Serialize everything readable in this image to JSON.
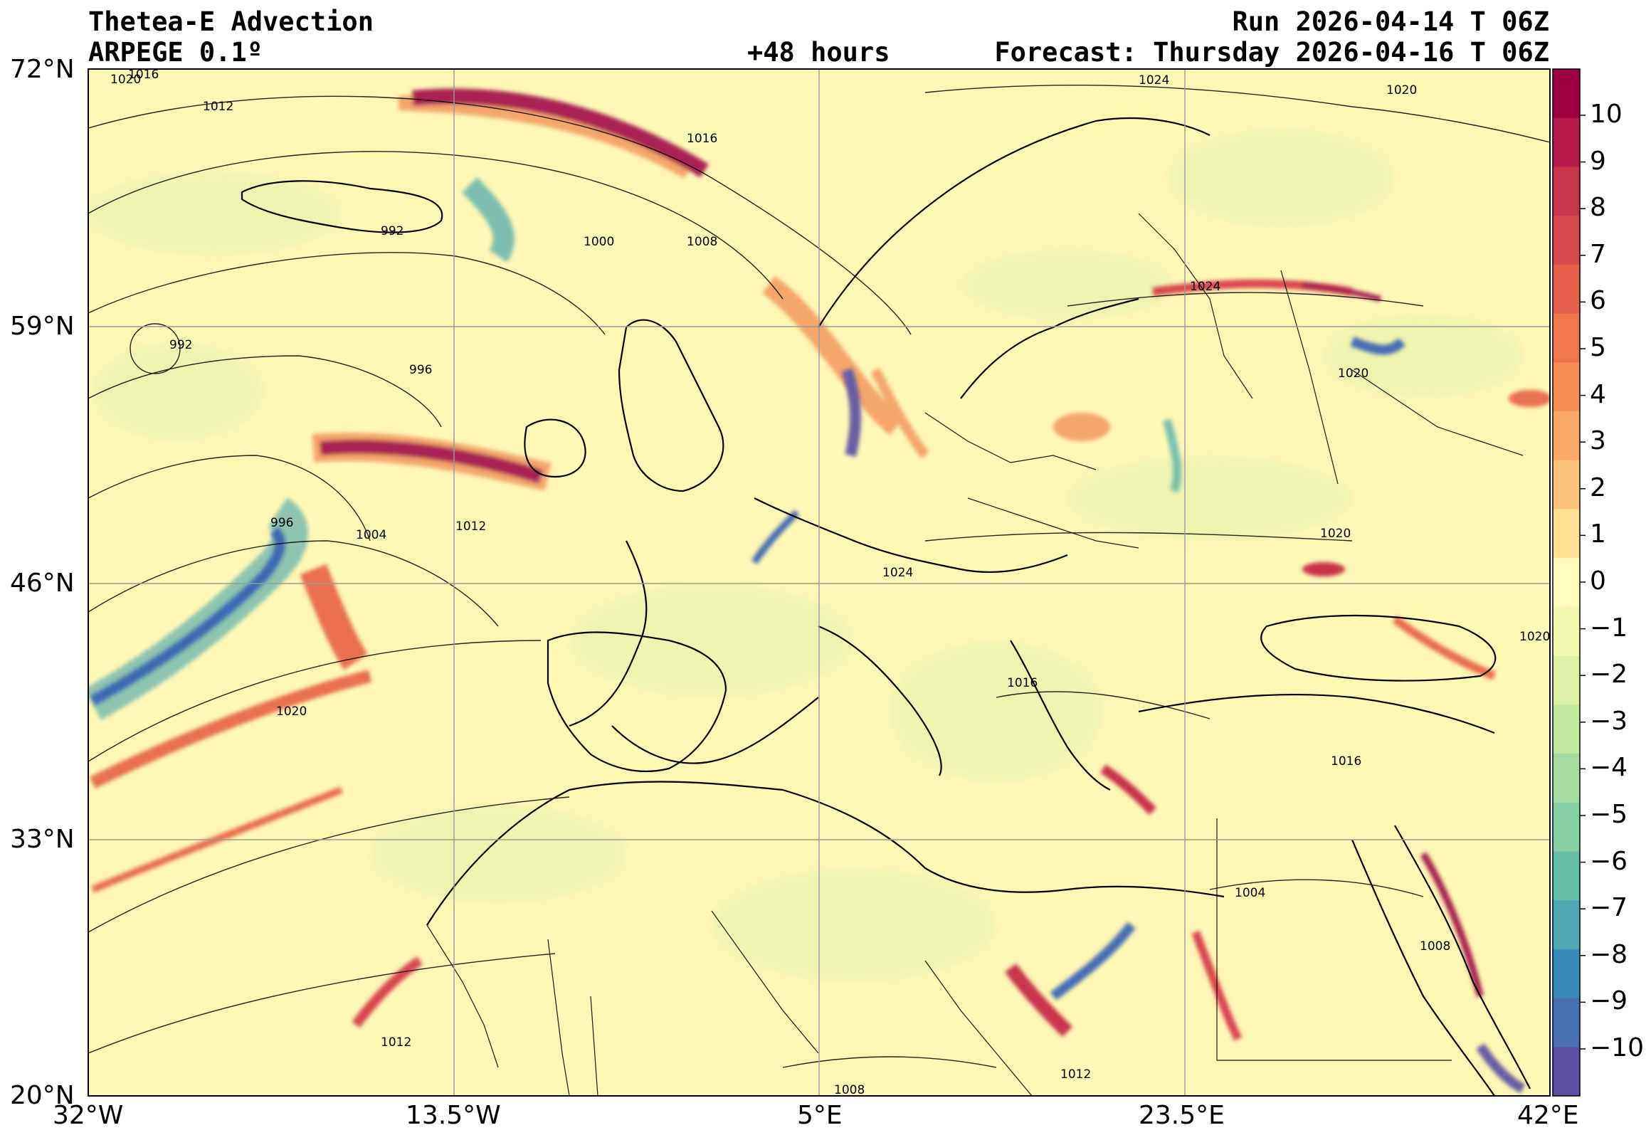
{
  "header": {
    "title": "Thetea-E Advection",
    "model": "ARPEGE 0.1º",
    "lead_time": "+48 hours",
    "run": "Run 2026-04-14 T 06Z",
    "forecast": "Forecast: Thursday 2026-04-16 T 06Z"
  },
  "axes": {
    "lat_labels": [
      "72°N",
      "59°N",
      "46°N",
      "33°N",
      "20°N"
    ],
    "lon_labels": [
      "32°W",
      "13.5°W",
      "5°E",
      "23.5°E",
      "42°E"
    ]
  },
  "colorbar": {
    "labels": [
      "10",
      "9",
      "8",
      "7",
      "6",
      "5",
      "4",
      "3",
      "2",
      "1",
      "0",
      "−1",
      "−2",
      "−3",
      "−4",
      "−5",
      "−6",
      "−7",
      "−8",
      "−9",
      "−10"
    ],
    "colors": [
      "#9e0142",
      "#b51a4a",
      "#c9344d",
      "#d9474f",
      "#e55f4b",
      "#f07749",
      "#f78f55",
      "#fba865",
      "#fdc57b",
      "#fee090",
      "#fffcbe",
      "#f3fab0",
      "#def0a5",
      "#c4e8a0",
      "#a6dba4",
      "#86cfa5",
      "#66bfa7",
      "#4fa7b2",
      "#3b8bba",
      "#4a70b4",
      "#5e4fa2"
    ]
  },
  "isobar_labels": [
    "1020",
    "1016",
    "1012",
    "1024",
    "1020",
    "1016",
    "992",
    "1000",
    "1008",
    "1024",
    "992",
    "996",
    "1020",
    "1004",
    "1012",
    "1020",
    "996",
    "1020",
    "1016",
    "1024",
    "1020",
    "1016",
    "1004",
    "1008",
    "1012",
    "1008",
    "1012"
  ],
  "colors": {
    "background_field": "#fdf7b4",
    "positive_advection": "#c0325a",
    "negative_advection": "#3a6fb0",
    "coastline": "#000000",
    "grid": "#9a9a9a"
  }
}
